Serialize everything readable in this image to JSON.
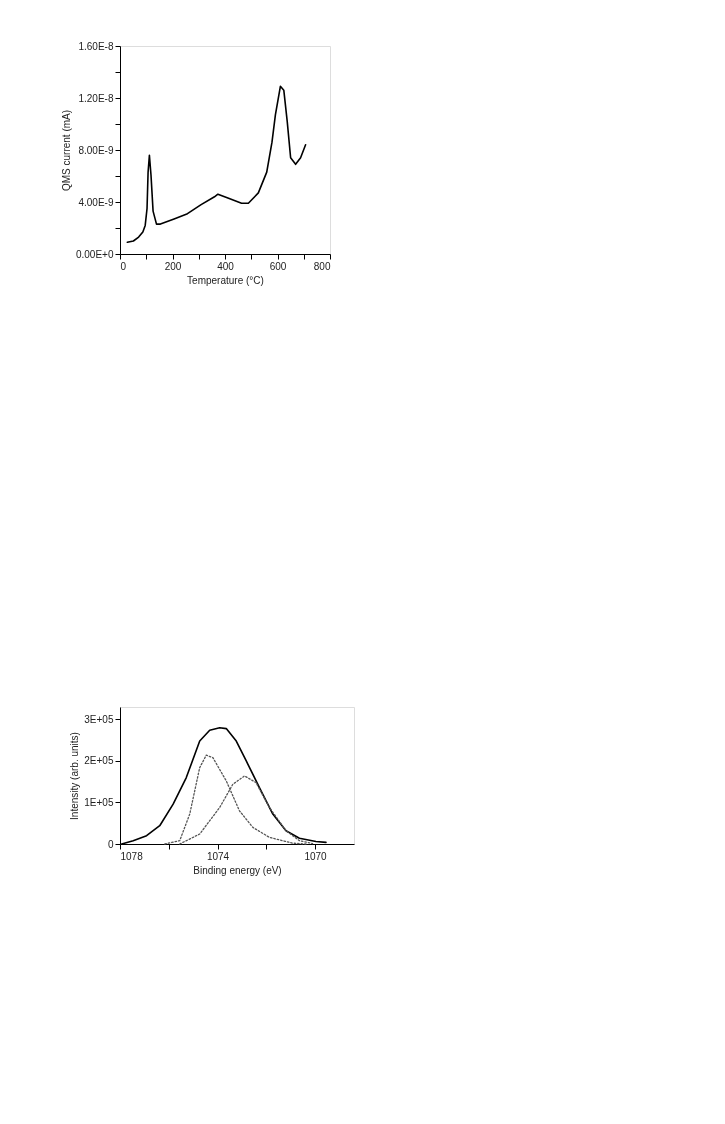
{
  "chart_data": [
    {
      "type": "line",
      "xlabel": "Temperature (°C)",
      "ylabel": "QMS current (mA)",
      "xlim": [
        0,
        800
      ],
      "ylim": [
        0,
        1.6e-08
      ],
      "xticks": [
        0,
        {
          "value": 100,
          "label": null
        },
        200,
        {
          "value": 300,
          "label": null
        },
        400,
        {
          "value": 500,
          "label": null
        },
        600,
        {
          "value": 700,
          "label": null
        },
        800
      ],
      "yticks": [
        {
          "value": 0,
          "label": "0.00E+0"
        },
        {
          "value": 2e-09,
          "label": null
        },
        {
          "value": 4e-09,
          "label": "4.00E-9"
        },
        {
          "value": 6e-09,
          "label": null
        },
        {
          "value": 8e-09,
          "label": "8.00E-9"
        },
        {
          "value": 1e-08,
          "label": null
        },
        {
          "value": 1.2e-08,
          "label": "1.20E-8"
        },
        {
          "value": 1.4e-08,
          "label": null
        },
        {
          "value": 1.6e-08,
          "label": "1.60E-8"
        }
      ],
      "grid": false,
      "legend": false,
      "marker": "none",
      "x": [
        28,
        51,
        71,
        87,
        96,
        103,
        107,
        112,
        118,
        126,
        139,
        154,
        206,
        257,
        309,
        360,
        373,
        411,
        463,
        489,
        527,
        559,
        579,
        592,
        611,
        624,
        637,
        650,
        669,
        688,
        707
      ],
      "series": [
        {
          "color": "#000000",
          "line_style": "solid",
          "values": [
            9e-10,
            1e-09,
            1.3e-09,
            1.7e-09,
            2.2e-09,
            3.5e-09,
            6.3e-09,
            7.6e-09,
            6.1e-09,
            3.3e-09,
            2.3e-09,
            2.3e-09,
            2.7e-09,
            3.1e-09,
            3.8e-09,
            4.4e-09,
            4.6e-09,
            4.3e-09,
            3.9e-09,
            3.9e-09,
            4.7e-09,
            6.3e-09,
            8.6e-09,
            1.07e-08,
            1.29e-08,
            1.26e-08,
            1.02e-08,
            7.4e-09,
            6.9e-09,
            7.4e-09,
            8.4e-09
          ]
        }
      ]
    },
    {
      "type": "line",
      "xlabel": "Binding energy (eV)",
      "ylabel": "Intensity (arb. units)",
      "xlim": [
        1078,
        1068.4
      ],
      "ylim": [
        0,
        330000
      ],
      "xticks": [
        1078,
        {
          "value": 1076,
          "label": null
        },
        1074,
        {
          "value": 1072,
          "label": null
        },
        1070
      ],
      "yticks": [
        0,
        {
          "value": 100000,
          "label": "1E+05"
        },
        {
          "value": 200000,
          "label": "2E+05"
        },
        {
          "value": 300000,
          "label": "3E+05"
        }
      ],
      "grid": false,
      "legend": false,
      "marker": "none",
      "series": [
        {
          "color": "#000000",
          "line_style": "solid",
          "x": [
            1077.93,
            1077.46,
            1076.91,
            1076.37,
            1075.82,
            1075.28,
            1074.73,
            1074.32,
            1073.91,
            1073.64,
            1073.23,
            1072.82,
            1072.28,
            1071.73,
            1071.19,
            1070.64,
            1069.96,
            1069.55
          ],
          "values": [
            0,
            8000,
            20000,
            44000,
            96000,
            160000,
            248000,
            274000,
            280000,
            278000,
            248000,
            200000,
            136000,
            72000,
            32000,
            14000,
            6000,
            4000
          ]
        },
        {
          "color": "#555555",
          "line_style": "dotted",
          "x": [
            1076.16,
            1075.55,
            1075.14,
            1074.73,
            1074.46,
            1074.19,
            1073.64,
            1073.1,
            1072.55,
            1071.87,
            1070.92,
            1070.37
          ],
          "values": [
            0,
            8000,
            72000,
            184000,
            214000,
            208000,
            152000,
            80000,
            40000,
            16000,
            2000,
            0
          ]
        },
        {
          "color": "#555555",
          "line_style": "dotted",
          "x": [
            1075.55,
            1074.73,
            1073.91,
            1073.37,
            1072.89,
            1072.42,
            1071.87,
            1071.19,
            1070.64,
            1070.1
          ],
          "values": [
            0,
            24000,
            88000,
            144000,
            164000,
            148000,
            88000,
            32000,
            8000,
            1000
          ]
        }
      ]
    }
  ]
}
